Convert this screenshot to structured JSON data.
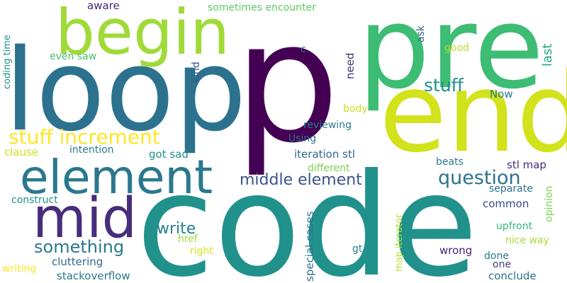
{
  "words": [
    {
      "text": "p",
      "color": "#440154"
    },
    {
      "text": "code",
      "color": "#21918c"
    },
    {
      "text": "loop",
      "color": "#2c728e"
    },
    {
      "text": "end",
      "color": "#d2e21b"
    },
    {
      "text": "pre",
      "color": "#3dbc74"
    },
    {
      "text": "begin",
      "color": "#a0da39"
    },
    {
      "text": "element",
      "color": "#2a788e"
    },
    {
      "text": "mid",
      "color": "#472d7b"
    },
    {
      "text": "stuff increment",
      "color": "#fde725"
    },
    {
      "text": "question",
      "color": "#2c728e"
    },
    {
      "text": "middle element",
      "color": "#3b528b"
    },
    {
      "text": "something",
      "color": "#2a788e"
    },
    {
      "text": "stuff",
      "color": "#21918c"
    },
    {
      "text": "write",
      "color": "#277f8e"
    },
    {
      "text": "aware",
      "color": "#482878"
    },
    {
      "text": "sometimes encounter",
      "color": "#5ec962"
    },
    {
      "text": "coding time",
      "color": "#21918c"
    },
    {
      "text": "even saw",
      "color": "#44bf70"
    },
    {
      "text": "kind",
      "color": "#3b528b"
    },
    {
      "text": "c",
      "color": "#2a788e"
    },
    {
      "text": "ask",
      "color": "#31688e"
    },
    {
      "text": "good",
      "color": "#b5de2b"
    },
    {
      "text": "last",
      "color": "#22a884"
    },
    {
      "text": "need",
      "color": "#46327e"
    },
    {
      "text": "Now",
      "color": "#2a788e"
    },
    {
      "text": "body",
      "color": "#c8e020"
    },
    {
      "text": "reviewing",
      "color": "#287c8e"
    },
    {
      "text": "Using",
      "color": "#2c728e"
    },
    {
      "text": "clause",
      "color": "#d0e11c"
    },
    {
      "text": "intention",
      "color": "#2a788e"
    },
    {
      "text": "got sad",
      "color": "#21918c"
    },
    {
      "text": "iteration stl",
      "color": "#31688e"
    },
    {
      "text": "different",
      "color": "#7ad151"
    },
    {
      "text": "beats",
      "color": "#2a788e"
    },
    {
      "text": "stl map",
      "color": "#472d7b"
    },
    {
      "text": "separate",
      "color": "#2c728e"
    },
    {
      "text": "construct",
      "color": "#21918c"
    },
    {
      "text": "common",
      "color": "#3e4989"
    },
    {
      "text": "opinion",
      "color": "#7ad151"
    },
    {
      "text": "upfront",
      "color": "#35b779"
    },
    {
      "text": "nice way",
      "color": "#a8db34"
    },
    {
      "text": "href",
      "color": "#a0da39"
    },
    {
      "text": "right",
      "color": "#d8e219"
    },
    {
      "text": "special cases",
      "color": "#2c728e"
    },
    {
      "text": "map iterator",
      "color": "#b5de2b"
    },
    {
      "text": "gt",
      "color": "#26828e"
    },
    {
      "text": "wrong",
      "color": "#482878"
    },
    {
      "text": "done",
      "color": "#2a788e"
    },
    {
      "text": "one",
      "color": "#433e85"
    },
    {
      "text": "cluttering",
      "color": "#31688e"
    },
    {
      "text": "writing",
      "color": "#fde725"
    },
    {
      "text": "stackoverflow",
      "color": "#2a788e"
    },
    {
      "text": "conclude",
      "color": "#2c728e"
    }
  ]
}
